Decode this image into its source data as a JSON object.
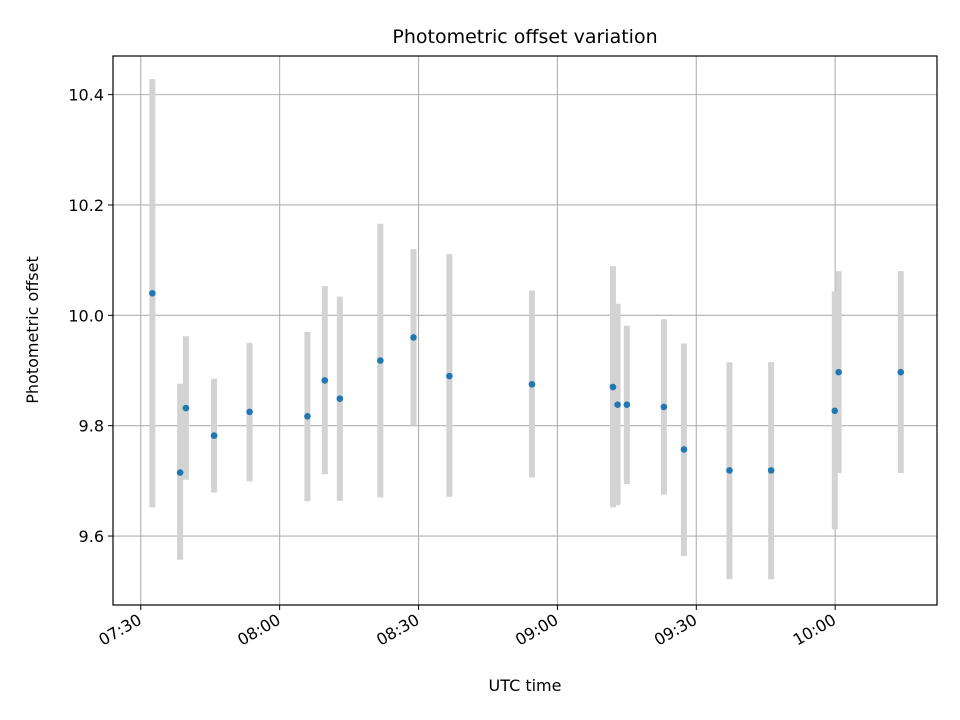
{
  "chart_data": {
    "type": "scatter",
    "title": "Photometric offset variation",
    "xlabel": "UTC time",
    "ylabel": "Photometric offset",
    "x_axis": "time",
    "xlim": [
      "07:24",
      "10:22"
    ],
    "ylim": [
      9.475,
      10.47
    ],
    "x_ticks": [
      "07:30",
      "08:00",
      "08:30",
      "09:00",
      "09:30",
      "10:00"
    ],
    "y_ticks": [
      9.6,
      9.8,
      10.0,
      10.2,
      10.4
    ],
    "y_tick_labels": [
      "9.6",
      "9.8",
      "10.0",
      "10.2",
      "10.4"
    ],
    "grid": true,
    "colors": {
      "point": "#1f77b4",
      "errorbar": "#d3d3d3",
      "grid": "#b0b0b0"
    },
    "points": [
      {
        "t": "07:32:30",
        "y": 10.04,
        "ylow": 9.652,
        "yhigh": 10.428
      },
      {
        "t": "07:38:30",
        "y": 9.715,
        "ylow": 9.557,
        "yhigh": 9.876
      },
      {
        "t": "07:39:45",
        "y": 9.832,
        "ylow": 9.702,
        "yhigh": 9.962
      },
      {
        "t": "07:45:50",
        "y": 9.782,
        "ylow": 9.679,
        "yhigh": 9.885
      },
      {
        "t": "07:53:30",
        "y": 9.825,
        "ylow": 9.699,
        "yhigh": 9.95
      },
      {
        "t": "08:06:00",
        "y": 9.817,
        "ylow": 9.663,
        "yhigh": 9.97
      },
      {
        "t": "08:09:45",
        "y": 9.882,
        "ylow": 9.712,
        "yhigh": 10.053
      },
      {
        "t": "08:13:00",
        "y": 9.849,
        "ylow": 9.664,
        "yhigh": 10.034
      },
      {
        "t": "08:21:45",
        "y": 9.918,
        "ylow": 9.67,
        "yhigh": 10.166
      },
      {
        "t": "08:28:55",
        "y": 9.96,
        "ylow": 9.8,
        "yhigh": 10.12
      },
      {
        "t": "08:36:40",
        "y": 9.89,
        "ylow": 9.671,
        "yhigh": 10.111
      },
      {
        "t": "08:54:30",
        "y": 9.875,
        "ylow": 9.706,
        "yhigh": 10.045
      },
      {
        "t": "09:12:00",
        "y": 9.87,
        "ylow": 9.652,
        "yhigh": 10.089
      },
      {
        "t": "09:13:00",
        "y": 9.838,
        "ylow": 9.656,
        "yhigh": 10.021
      },
      {
        "t": "09:15:00",
        "y": 9.838,
        "ylow": 9.694,
        "yhigh": 9.981
      },
      {
        "t": "09:23:00",
        "y": 9.834,
        "ylow": 9.675,
        "yhigh": 9.993
      },
      {
        "t": "09:27:20",
        "y": 9.757,
        "ylow": 9.564,
        "yhigh": 9.949
      },
      {
        "t": "09:37:10",
        "y": 9.719,
        "ylow": 9.522,
        "yhigh": 9.915
      },
      {
        "t": "09:46:10",
        "y": 9.719,
        "ylow": 9.522,
        "yhigh": 9.915
      },
      {
        "t": "09:59:55",
        "y": 9.827,
        "ylow": 9.612,
        "yhigh": 10.043
      },
      {
        "t": "10:00:45",
        "y": 9.897,
        "ylow": 9.714,
        "yhigh": 10.08
      },
      {
        "t": "10:14:10",
        "y": 9.897,
        "ylow": 9.714,
        "yhigh": 10.08
      }
    ]
  }
}
